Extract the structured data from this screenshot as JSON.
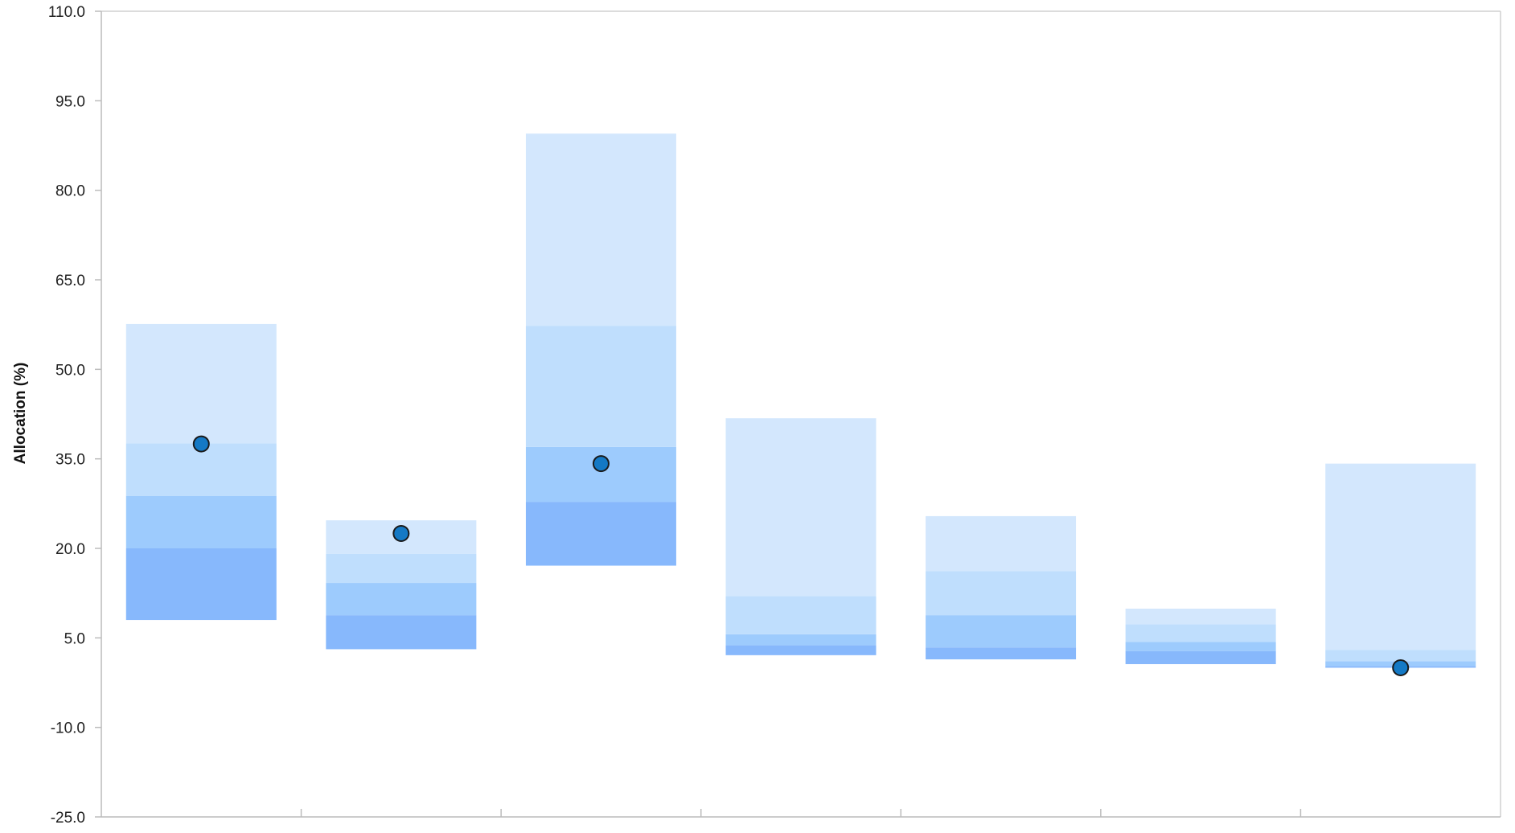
{
  "chart_data": {
    "type": "bar",
    "subtype": "floating-stacked-range-with-markers",
    "title": "",
    "xlabel": "",
    "ylabel": "Allocation (%)",
    "ylim": [
      -25,
      110
    ],
    "yticks": [
      -25,
      -10,
      5,
      20,
      35,
      50,
      65,
      80,
      95,
      110
    ],
    "ytick_labels": [
      "-25.0",
      "-10.0",
      "5.0",
      "20.0",
      "35.0",
      "50.0",
      "65.0",
      "80.0",
      "95.0",
      "110.0"
    ],
    "grid": false,
    "legend": "none",
    "band_colors": [
      "#87b8fc",
      "#9dcbfd",
      "#bfdefd",
      "#d3e7fd"
    ],
    "marker_color": "#1479c5",
    "categories": [
      "",
      "",
      "",
      "",
      "",
      "",
      ""
    ],
    "ranges": [
      {
        "bands": [
          8.0,
          20.0,
          28.8,
          37.6,
          57.6
        ],
        "marker": 37.5
      },
      {
        "bands": [
          3.1,
          8.8,
          14.2,
          19.1,
          24.7
        ],
        "marker": 22.5
      },
      {
        "bands": [
          17.1,
          27.8,
          37.0,
          57.3,
          89.5
        ],
        "marker": 34.2
      },
      {
        "bands": [
          2.1,
          3.8,
          5.6,
          12.0,
          41.8
        ],
        "marker": null
      },
      {
        "bands": [
          1.4,
          3.4,
          8.8,
          16.2,
          25.4
        ],
        "marker": null
      },
      {
        "bands": [
          0.6,
          2.8,
          4.3,
          7.3,
          9.9
        ],
        "marker": null
      },
      {
        "bands": [
          0.0,
          0.3,
          1.1,
          3.0,
          34.2
        ],
        "marker": 0.0
      }
    ]
  }
}
